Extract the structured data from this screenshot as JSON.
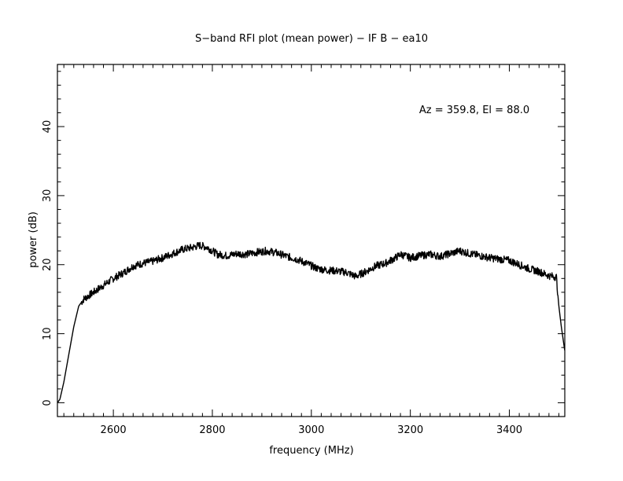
{
  "chart_data": {
    "type": "line",
    "title": "S−band RFI plot (mean power) − IF B − ea10",
    "xlabel": "frequency (MHz)",
    "ylabel": "power (dB)",
    "annotation": "Az = 359.8, El = 88.0",
    "xlim": [
      2487,
      3512
    ],
    "ylim": [
      -2,
      49
    ],
    "x_ticks": [
      2600,
      2800,
      3000,
      3200,
      3400
    ],
    "y_ticks": [
      0,
      10,
      20,
      30,
      40
    ],
    "grid": false,
    "series": [
      {
        "color": "#000000",
        "x": [
          2487,
          2492,
          2500,
          2510,
          2520,
          2530,
          2540,
          2550,
          2560,
          2580,
          2600,
          2620,
          2640,
          2660,
          2680,
          2700,
          2720,
          2740,
          2760,
          2775,
          2790,
          2810,
          2830,
          2850,
          2870,
          2890,
          2910,
          2930,
          2950,
          2970,
          2990,
          3010,
          3030,
          3050,
          3070,
          3090,
          3110,
          3130,
          3150,
          3170,
          3180,
          3200,
          3220,
          3240,
          3260,
          3280,
          3300,
          3320,
          3340,
          3360,
          3380,
          3400,
          3420,
          3440,
          3460,
          3480,
          3495,
          3500,
          3505,
          3512
        ],
        "y": [
          0,
          0.5,
          3,
          7,
          11,
          14,
          15,
          15.5,
          16,
          17,
          18,
          18.8,
          19.8,
          20.2,
          20.5,
          21,
          21.6,
          22.2,
          22.5,
          22.8,
          22.5,
          21.5,
          21.3,
          21.6,
          21.5,
          21.8,
          22,
          21.7,
          21.2,
          20.8,
          20.2,
          19.5,
          19.2,
          19.1,
          18.9,
          18.3,
          19,
          19.8,
          20.2,
          21,
          21.5,
          21,
          21.3,
          21.5,
          21.2,
          21.6,
          22,
          21.6,
          21.3,
          21,
          20.8,
          20.6,
          20,
          19.4,
          19,
          18.4,
          18.2,
          14,
          11,
          7.5
        ]
      }
    ]
  }
}
